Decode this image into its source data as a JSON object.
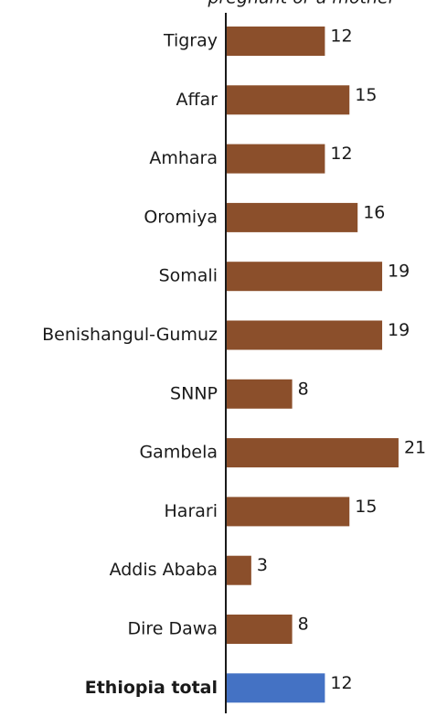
{
  "chart_data": {
    "type": "hbar",
    "subtitle": "pregnant or a mother",
    "categories": [
      "Tigray",
      "Affar",
      "Amhara",
      "Oromiya",
      "Somali",
      "Benishangul-Gumuz",
      "SNNP",
      "Gambela",
      "Harari",
      "Addis Ababa",
      "Dire Dawa",
      "Ethiopia total"
    ],
    "values": [
      12,
      15,
      12,
      16,
      19,
      19,
      8,
      21,
      15,
      3,
      8,
      12
    ],
    "colors": [
      "#8b4f2b",
      "#8b4f2b",
      "#8b4f2b",
      "#8b4f2b",
      "#8b4f2b",
      "#8b4f2b",
      "#8b4f2b",
      "#8b4f2b",
      "#8b4f2b",
      "#8b4f2b",
      "#8b4f2b",
      "#4472c4"
    ],
    "bold_categories": [
      "Ethiopia total"
    ]
  }
}
